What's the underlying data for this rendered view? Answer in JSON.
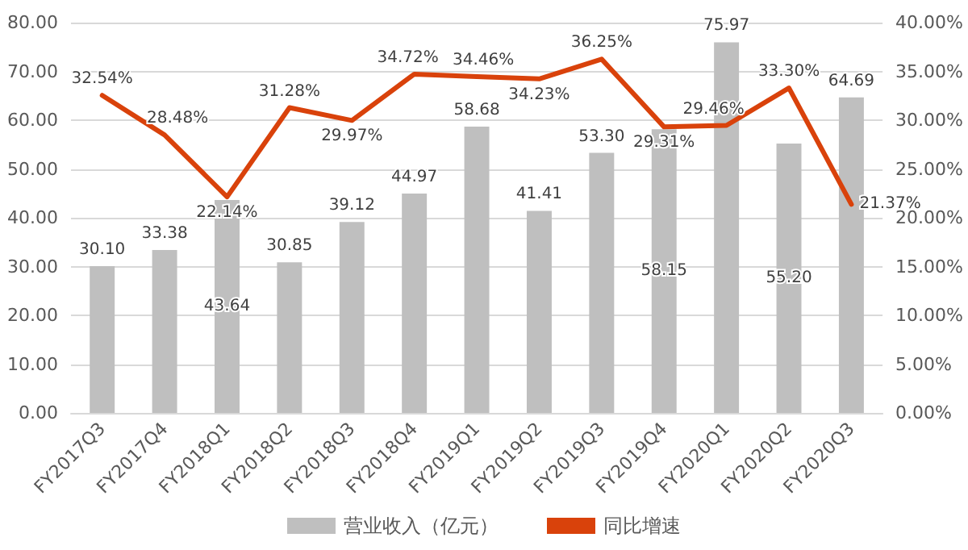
{
  "chart_data": {
    "type": "bar",
    "categories": [
      "FY2017Q3",
      "FY2017Q4",
      "FY2018Q1",
      "FY2018Q2",
      "FY2018Q3",
      "FY2018Q4",
      "FY2019Q1",
      "FY2019Q2",
      "FY2019Q3",
      "FY2019Q4",
      "FY2020Q1",
      "FY2020Q2",
      "FY2020Q3"
    ],
    "series": [
      {
        "name": "营业收入（亿元）",
        "color": "#bfbfbf",
        "values": [
          30.1,
          33.38,
          43.64,
          30.85,
          39.12,
          44.97,
          58.68,
          41.41,
          53.3,
          58.15,
          75.97,
          55.2,
          64.69
        ],
        "value_labels": [
          "30.10",
          "33.38",
          "43.64",
          "30.85",
          "39.12",
          "44.97",
          "58.68",
          "41.41",
          "53.30",
          "58.15",
          "75.97",
          "55.20",
          "64.69"
        ]
      },
      {
        "name": "同比增速",
        "type": "line",
        "axis": "y2",
        "color": "#d9420b",
        "values": [
          32.54,
          28.48,
          22.14,
          31.28,
          29.97,
          34.72,
          34.46,
          34.23,
          36.25,
          29.31,
          29.46,
          33.3,
          21.37
        ],
        "value_labels": [
          "32.54%",
          "28.48%",
          "22.14%",
          "31.28%",
          "29.97%",
          "34.72%",
          "34.46%",
          "34.23%",
          "36.25%",
          "29.31%",
          "29.46%",
          "33.30%",
          "21.37%"
        ]
      }
    ],
    "ylim": [
      0,
      80
    ],
    "yticks": [
      {
        "value": 0,
        "label": "0.00"
      },
      {
        "value": 10,
        "label": "10.00"
      },
      {
        "value": 20,
        "label": "20.00"
      },
      {
        "value": 30,
        "label": "30.00"
      },
      {
        "value": 40,
        "label": "40.00"
      },
      {
        "value": 50,
        "label": "50.00"
      },
      {
        "value": 60,
        "label": "60.00"
      },
      {
        "value": 70,
        "label": "70.00"
      },
      {
        "value": 80,
        "label": "80.00"
      }
    ],
    "y2lim": [
      0,
      40
    ],
    "y2ticks": [
      {
        "value": 0,
        "label": "0.00%"
      },
      {
        "value": 5,
        "label": "5.00%"
      },
      {
        "value": 10,
        "label": "10.00%"
      },
      {
        "value": 15,
        "label": "15.00%"
      },
      {
        "value": 20,
        "label": "20.00%"
      },
      {
        "value": 25,
        "label": "25.00%"
      },
      {
        "value": 30,
        "label": "30.00%"
      },
      {
        "value": 35,
        "label": "35.00%"
      },
      {
        "value": 40,
        "label": "40.00%"
      }
    ],
    "grid": "y",
    "legend": "bottom",
    "marker": "none",
    "line_style": "solid"
  }
}
